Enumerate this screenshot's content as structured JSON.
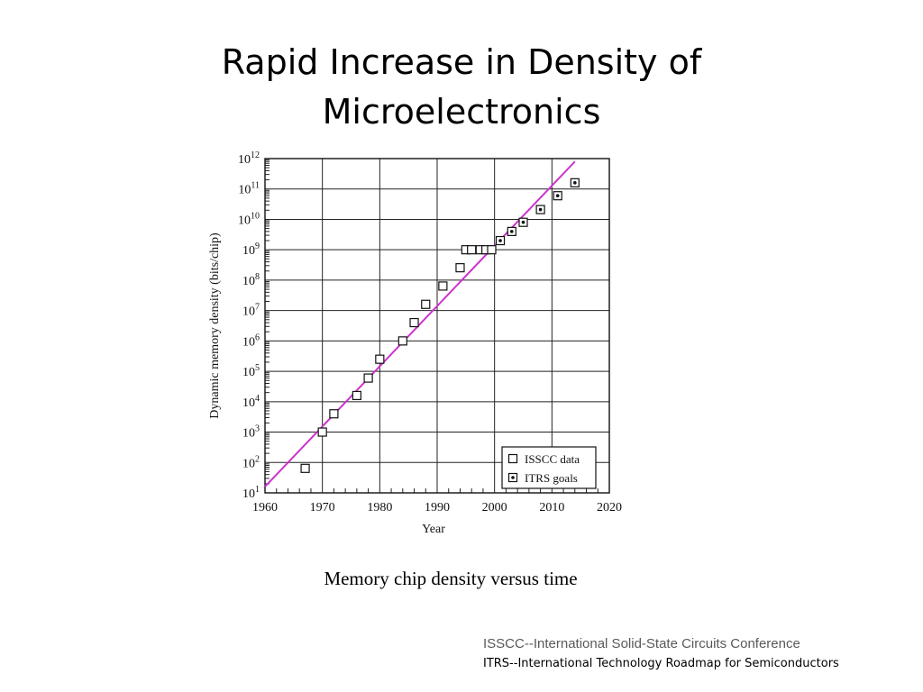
{
  "slide": {
    "title_line1": "Rapid Increase in Density of",
    "title_line2": "Microelectronics",
    "caption": "Memory chip density versus time",
    "footnotes": [
      "ISSCC--International Solid-State Circuits Conference",
      "ITRS--International Technology Roadmap for Semiconductors"
    ]
  },
  "chart_data": {
    "type": "scatter",
    "xlabel": "Year",
    "ylabel": "Dynamic memory density (bits/chip)",
    "xlim": [
      1960,
      2020
    ],
    "ylim": [
      10,
      1000000000000
    ],
    "yscale": "log",
    "x_ticks": [
      1960,
      1970,
      1980,
      1990,
      2000,
      2010,
      2020
    ],
    "x_tick_labels": [
      "1960",
      "1970",
      "1980",
      "1990",
      "2000",
      "2010",
      "2020"
    ],
    "y_tick_exponents": [
      1,
      2,
      3,
      4,
      5,
      6,
      7,
      8,
      9,
      10,
      11,
      12
    ],
    "grid": true,
    "legend": "bottom-right",
    "series": [
      {
        "name": "ISSCC data",
        "marker": "open-square",
        "points": [
          {
            "x": 1967,
            "y": 64
          },
          {
            "x": 1970,
            "y": 1000
          },
          {
            "x": 1972,
            "y": 4000
          },
          {
            "x": 1976,
            "y": 16000
          },
          {
            "x": 1978,
            "y": 60000
          },
          {
            "x": 1980,
            "y": 250000
          },
          {
            "x": 1984,
            "y": 1000000
          },
          {
            "x": 1986,
            "y": 4000000
          },
          {
            "x": 1988,
            "y": 16000000
          },
          {
            "x": 1991,
            "y": 64000000
          },
          {
            "x": 1994,
            "y": 256000000
          },
          {
            "x": 1995,
            "y": 1000000000
          },
          {
            "x": 1996,
            "y": 1000000000
          },
          {
            "x": 1997.5,
            "y": 1000000000
          },
          {
            "x": 1998.5,
            "y": 1000000000
          },
          {
            "x": 1999.5,
            "y": 1000000000
          }
        ]
      },
      {
        "name": "ITRS goals",
        "marker": "dotted-square",
        "points": [
          {
            "x": 2001,
            "y": 2000000000
          },
          {
            "x": 2003,
            "y": 4000000000
          },
          {
            "x": 2005,
            "y": 8000000000
          },
          {
            "x": 2008,
            "y": 21000000000
          },
          {
            "x": 2011,
            "y": 60000000000
          },
          {
            "x": 2014,
            "y": 160000000000
          }
        ]
      },
      {
        "type": "line",
        "color": "#cc33cc",
        "points": [
          {
            "x": 1960,
            "y": 16
          },
          {
            "x": 2014,
            "y": 800000000000
          }
        ]
      }
    ]
  }
}
